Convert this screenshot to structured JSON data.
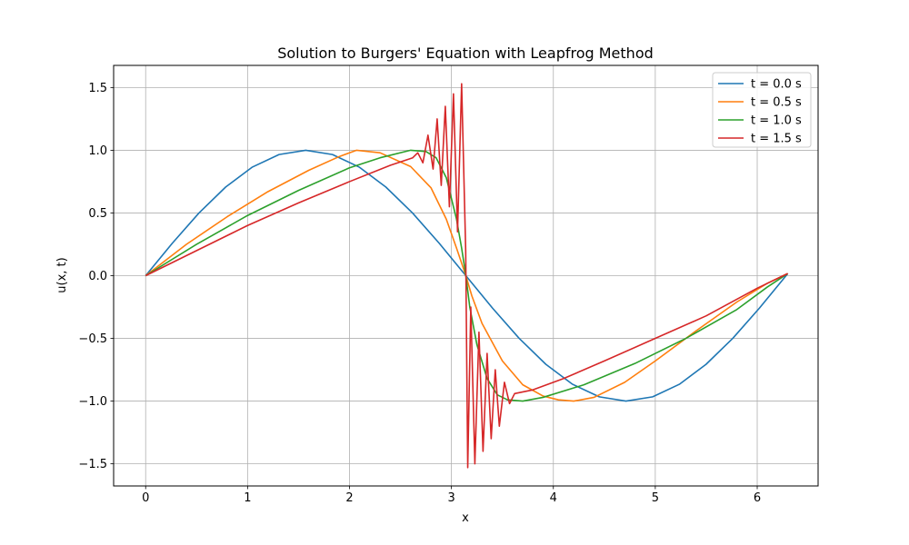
{
  "chart_data": {
    "type": "line",
    "title": "Solution to Burgers' Equation with Leapfrog Method",
    "xlabel": "x",
    "ylabel": "u(x, t)",
    "xlim": [
      -0.3142,
      6.5974
    ],
    "ylim": [
      -1.6765,
      1.6765
    ],
    "xticks": [
      0,
      1,
      2,
      3,
      4,
      5,
      6
    ],
    "xtick_labels": [
      "0",
      "1",
      "2",
      "3",
      "4",
      "5",
      "6"
    ],
    "yticks": [
      -1.5,
      -1.0,
      -0.5,
      0.0,
      0.5,
      1.0,
      1.5
    ],
    "ytick_labels": [
      "−1.5",
      "−1.0",
      "−0.5",
      "0.0",
      "0.5",
      "1.0",
      "1.5"
    ],
    "grid": true,
    "legend_position": "top-right",
    "series": [
      {
        "name": "t = 0.0 s",
        "color": "#1f77b4",
        "x": [
          0,
          0.2618,
          0.5236,
          0.7854,
          1.0472,
          1.309,
          1.5708,
          1.8326,
          2.0944,
          2.3562,
          2.618,
          2.8798,
          3.1416,
          3.4034,
          3.6652,
          3.927,
          4.1888,
          4.4506,
          4.7124,
          4.9742,
          5.236,
          5.4978,
          5.7596,
          6.0214,
          6.2832,
          6.3
        ],
        "y": [
          0,
          0.259,
          0.5,
          0.707,
          0.866,
          0.966,
          1.0,
          0.966,
          0.866,
          0.707,
          0.5,
          0.259,
          0,
          -0.259,
          -0.5,
          -0.707,
          -0.866,
          -0.966,
          -1.0,
          -0.966,
          -0.866,
          -0.707,
          -0.5,
          -0.259,
          0,
          0.017
        ]
      },
      {
        "name": "t = 0.5 s",
        "color": "#ff7f0e",
        "x": [
          0,
          0.4,
          0.8,
          1.2,
          1.6,
          1.9,
          2.07,
          2.3,
          2.6,
          2.8,
          2.95,
          3.05,
          3.1416,
          3.2,
          3.3,
          3.5,
          3.7,
          3.9,
          4.05,
          4.2,
          4.4,
          4.7,
          5.0,
          5.4,
          5.8,
          6.1,
          6.3
        ],
        "y": [
          0,
          0.25,
          0.47,
          0.67,
          0.84,
          0.95,
          1.0,
          0.98,
          0.87,
          0.7,
          0.45,
          0.22,
          0,
          -0.16,
          -0.38,
          -0.68,
          -0.87,
          -0.96,
          -0.99,
          -1.0,
          -0.97,
          -0.85,
          -0.68,
          -0.44,
          -0.21,
          -0.06,
          0.017
        ]
      },
      {
        "name": "t = 1.0 s",
        "color": "#2ca02c",
        "x": [
          0,
          0.5,
          1.0,
          1.5,
          2.0,
          2.3,
          2.6,
          2.75,
          2.85,
          2.95,
          3.05,
          3.1,
          3.1416,
          3.18,
          3.25,
          3.35,
          3.45,
          3.55,
          3.7,
          3.9,
          4.3,
          4.8,
          5.3,
          5.8,
          6.1,
          6.3
        ],
        "y": [
          0,
          0.25,
          0.48,
          0.68,
          0.86,
          0.94,
          1.0,
          0.99,
          0.94,
          0.78,
          0.45,
          0.22,
          0,
          -0.25,
          -0.55,
          -0.82,
          -0.95,
          -0.99,
          -1.0,
          -0.97,
          -0.87,
          -0.7,
          -0.5,
          -0.27,
          -0.09,
          0.017
        ]
      },
      {
        "name": "t = 1.5 s",
        "color": "#d62728",
        "x": [
          0,
          0.5,
          1.0,
          1.5,
          2.0,
          2.4,
          2.62,
          2.67,
          2.72,
          2.77,
          2.82,
          2.86,
          2.9,
          2.94,
          2.98,
          3.02,
          3.06,
          3.1,
          3.14,
          3.16,
          3.19,
          3.23,
          3.27,
          3.31,
          3.35,
          3.39,
          3.43,
          3.47,
          3.52,
          3.57,
          3.62,
          3.8,
          4.1,
          4.5,
          5.0,
          5.5,
          6.0,
          6.3
        ],
        "y": [
          0,
          0.2,
          0.4,
          0.58,
          0.75,
          0.88,
          0.94,
          0.98,
          0.9,
          1.12,
          0.85,
          1.25,
          0.72,
          1.35,
          0.55,
          1.45,
          0.35,
          1.53,
          0.2,
          -1.53,
          -0.25,
          -1.5,
          -0.45,
          -1.4,
          -0.62,
          -1.3,
          -0.75,
          -1.2,
          -0.85,
          -1.02,
          -0.94,
          -0.91,
          -0.82,
          -0.68,
          -0.5,
          -0.32,
          -0.1,
          0.017
        ]
      }
    ]
  }
}
